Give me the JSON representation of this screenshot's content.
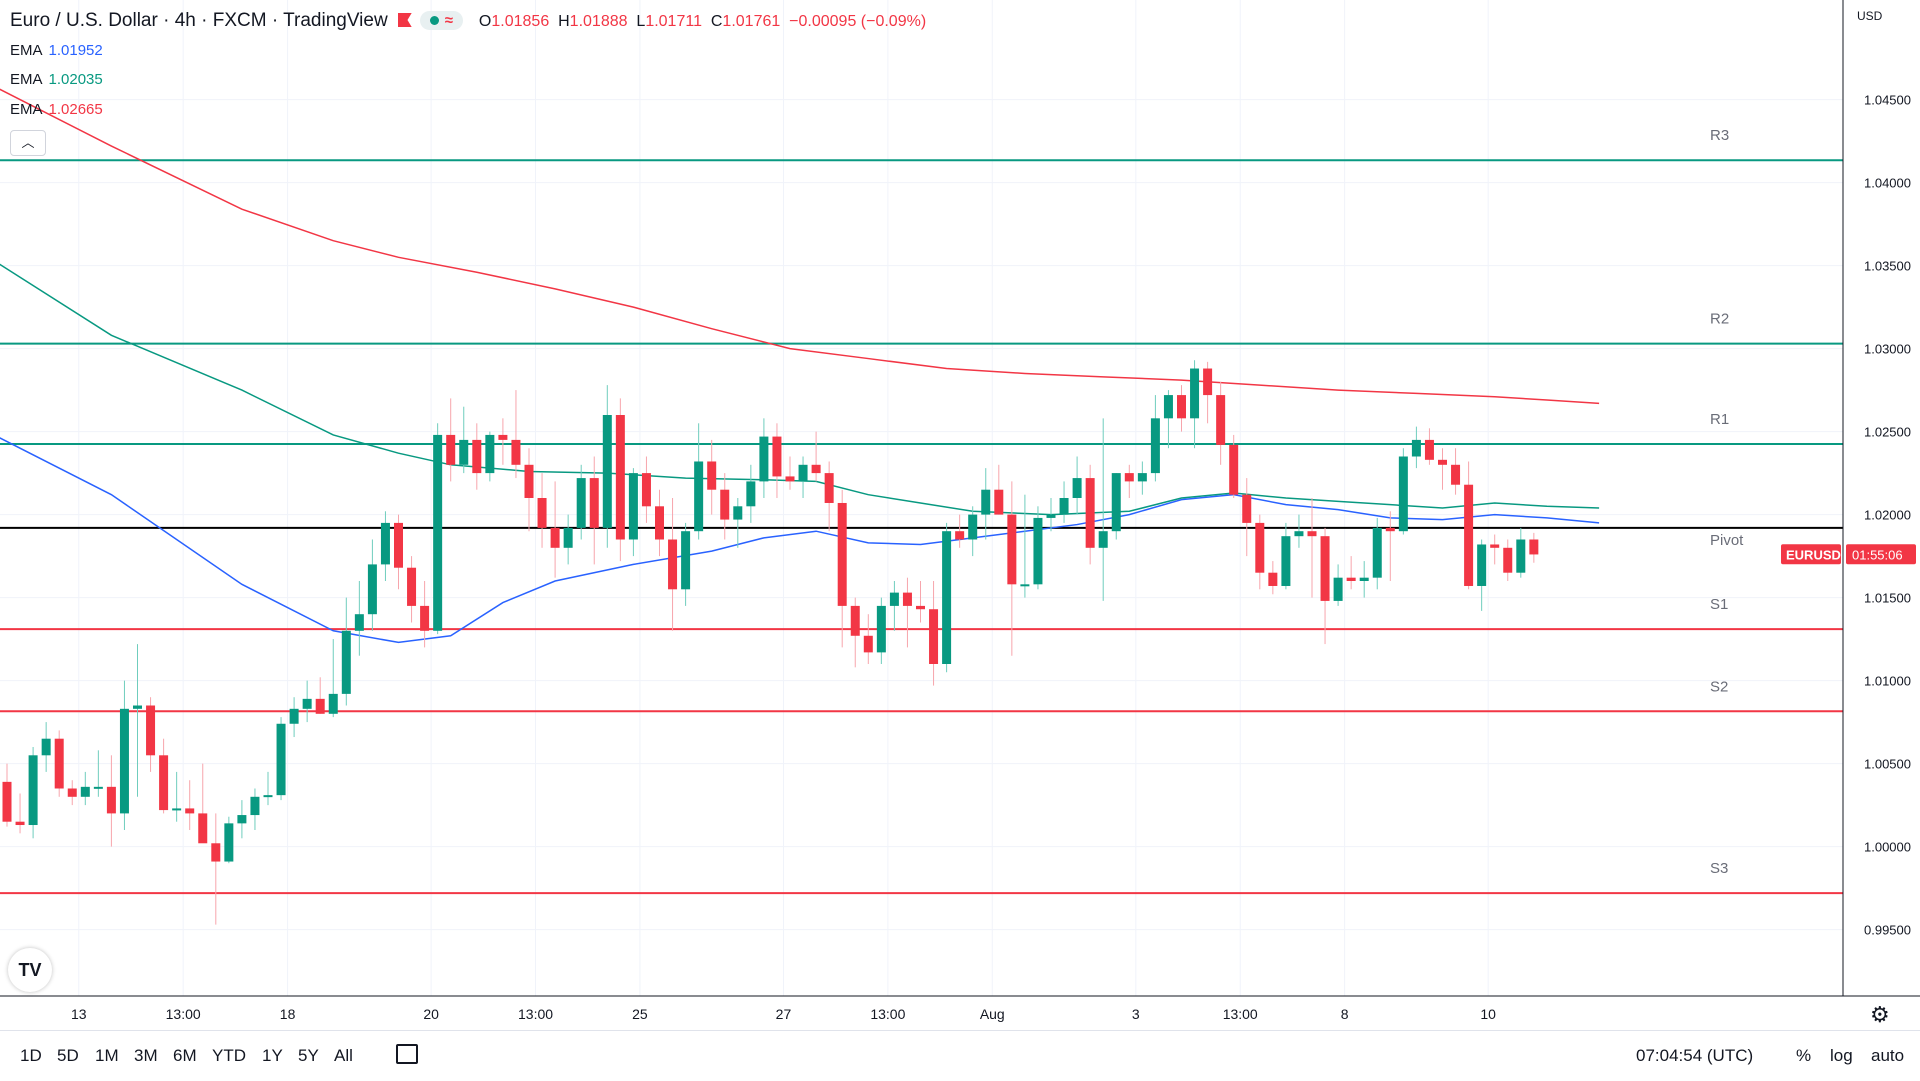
{
  "header": {
    "symbol": "Euro / U.S. Dollar",
    "interval": "4h",
    "exchange": "FXCM",
    "platform": "TradingView",
    "open_label": "O",
    "open": "1.01856",
    "high_label": "H",
    "high": "1.01888",
    "low_label": "L",
    "low": "1.01711",
    "close_label": "C",
    "close": "1.01761",
    "change": "−0.00095 (−0.09%)",
    "separator": "·"
  },
  "indicators": [
    {
      "name": "EMA",
      "value": "1.01952",
      "color": "#2962ff"
    },
    {
      "name": "EMA",
      "value": "1.02035",
      "color": "#089981"
    },
    {
      "name": "EMA",
      "value": "1.02665",
      "color": "#f23645"
    }
  ],
  "collapse_icon": "chevron-up",
  "logo_text": "TV",
  "currency": "USD",
  "chart_data": {
    "type": "candlestick",
    "symbol_badge": "EURUSD",
    "countdown": "01:55:06",
    "last_price": 1.01761,
    "ylim": [
      0.991,
      1.051
    ],
    "y_ticks": [
      "1.04500",
      "1.04000",
      "1.03500",
      "1.03000",
      "1.02500",
      "1.02000",
      "1.01500",
      "1.01000",
      "1.00500",
      "1.00000",
      "0.99500"
    ],
    "y_tick_values": [
      1.045,
      1.04,
      1.035,
      1.03,
      1.025,
      1.02,
      1.015,
      1.01,
      1.005,
      1.0,
      0.995
    ],
    "x_ticks": [
      {
        "label": "13",
        "index": 5.5
      },
      {
        "label": "13:00",
        "index": 13.5
      },
      {
        "label": "18",
        "index": 21.5
      },
      {
        "label": "20",
        "index": 32.5
      },
      {
        "label": "13:00",
        "index": 40.5
      },
      {
        "label": "25",
        "index": 48.5
      },
      {
        "label": "27",
        "index": 59.5
      },
      {
        "label": "13:00",
        "index": 67.5
      },
      {
        "label": "Aug",
        "index": 75.5
      },
      {
        "label": "3",
        "index": 86.5
      },
      {
        "label": "13:00",
        "index": 94.5
      },
      {
        "label": "8",
        "index": 102.5
      },
      {
        "label": "10",
        "index": 113.5
      }
    ],
    "levels": [
      {
        "name": "R3",
        "value": 1.04135,
        "color": "#089981"
      },
      {
        "name": "R2",
        "value": 1.0303,
        "color": "#089981"
      },
      {
        "name": "R1",
        "value": 1.02425,
        "color": "#089981"
      },
      {
        "name": "Pivot",
        "value": 1.0192,
        "color": "#000000"
      },
      {
        "name": "S1",
        "value": 1.0131,
        "color": "#f23645"
      },
      {
        "name": "S2",
        "value": 1.00815,
        "color": "#f23645"
      },
      {
        "name": "S3",
        "value": 0.9972,
        "color": "#f23645"
      }
    ],
    "candles": [
      [
        1.0039,
        1.005,
        1.0012,
        1.0015
      ],
      [
        1.0015,
        1.0032,
        1.0008,
        1.0013
      ],
      [
        1.0013,
        1.006,
        1.0005,
        1.0055
      ],
      [
        1.0055,
        1.0075,
        1.0045,
        1.0065
      ],
      [
        1.0065,
        1.007,
        1.003,
        1.0035
      ],
      [
        1.0035,
        1.004,
        1.0025,
        1.003
      ],
      [
        1.003,
        1.0045,
        1.0025,
        1.0036
      ],
      [
        1.0036,
        1.0058,
        1.003,
        1.0036
      ],
      [
        1.0036,
        1.0055,
        1.0,
        1.002
      ],
      [
        1.002,
        1.01,
        1.001,
        1.0083
      ],
      [
        1.0083,
        1.0122,
        1.003,
        1.0085
      ],
      [
        1.0085,
        1.009,
        1.0045,
        1.0055
      ],
      [
        1.0055,
        1.0065,
        1.002,
        1.0022
      ],
      [
        1.0022,
        1.0045,
        1.0015,
        1.0023
      ],
      [
        1.0023,
        1.004,
        1.001,
        1.002
      ],
      [
        1.002,
        1.005,
        1.0005,
        1.0002
      ],
      [
        1.0002,
        1.002,
        0.9953,
        0.9991
      ],
      [
        0.9991,
        1.0018,
        0.999,
        1.0014
      ],
      [
        1.0014,
        1.0028,
        1.0005,
        1.0019
      ],
      [
        1.0019,
        1.0035,
        1.001,
        1.003
      ],
      [
        1.003,
        1.0045,
        1.0025,
        1.0031
      ],
      [
        1.0031,
        1.0078,
        1.0028,
        1.0074
      ],
      [
        1.0074,
        1.009,
        1.0066,
        1.0083
      ],
      [
        1.0083,
        1.01,
        1.0075,
        1.0089
      ],
      [
        1.0089,
        1.0102,
        1.008,
        1.008
      ],
      [
        1.008,
        1.0125,
        1.0078,
        1.0092
      ],
      [
        1.0092,
        1.015,
        1.0085,
        1.013
      ],
      [
        1.013,
        1.016,
        1.0115,
        1.014
      ],
      [
        1.014,
        1.0185,
        1.013,
        1.017
      ],
      [
        1.017,
        1.0202,
        1.016,
        1.0195
      ],
      [
        1.0195,
        1.02,
        1.0155,
        1.0168
      ],
      [
        1.0168,
        1.0175,
        1.0135,
        1.0145
      ],
      [
        1.0145,
        1.016,
        1.012,
        1.013
      ],
      [
        1.013,
        1.0255,
        1.0128,
        1.0248
      ],
      [
        1.0248,
        1.027,
        1.022,
        1.023
      ],
      [
        1.023,
        1.0265,
        1.0225,
        1.0245
      ],
      [
        1.0245,
        1.0255,
        1.0215,
        1.0225
      ],
      [
        1.0225,
        1.025,
        1.022,
        1.0248
      ],
      [
        1.0248,
        1.0258,
        1.023,
        1.0245
      ],
      [
        1.0245,
        1.0275,
        1.0222,
        1.023
      ],
      [
        1.023,
        1.024,
        1.019,
        1.021
      ],
      [
        1.021,
        1.0225,
        1.018,
        1.0192
      ],
      [
        1.0192,
        1.022,
        1.0162,
        1.018
      ],
      [
        1.018,
        1.02,
        1.017,
        1.0192
      ],
      [
        1.0192,
        1.023,
        1.0185,
        1.0222
      ],
      [
        1.0222,
        1.0235,
        1.017,
        1.0192
      ],
      [
        1.0192,
        1.0278,
        1.018,
        1.026
      ],
      [
        1.026,
        1.027,
        1.0172,
        1.0185
      ],
      [
        1.0185,
        1.0228,
        1.0175,
        1.0225
      ],
      [
        1.0225,
        1.0235,
        1.0195,
        1.0205
      ],
      [
        1.0205,
        1.0215,
        1.0175,
        1.0185
      ],
      [
        1.0185,
        1.021,
        1.013,
        1.0155
      ],
      [
        1.0155,
        1.0195,
        1.0145,
        1.019
      ],
      [
        1.019,
        1.0255,
        1.0185,
        1.0232
      ],
      [
        1.0232,
        1.0245,
        1.02,
        1.0215
      ],
      [
        1.0215,
        1.0225,
        1.0185,
        1.0197
      ],
      [
        1.0197,
        1.021,
        1.018,
        1.0205
      ],
      [
        1.0205,
        1.023,
        1.0195,
        1.022
      ],
      [
        1.022,
        1.0258,
        1.021,
        1.0247
      ],
      [
        1.0247,
        1.0255,
        1.021,
        1.0223
      ],
      [
        1.0223,
        1.0235,
        1.0215,
        1.022
      ],
      [
        1.022,
        1.0235,
        1.021,
        1.023
      ],
      [
        1.023,
        1.025,
        1.022,
        1.0225
      ],
      [
        1.0225,
        1.0232,
        1.019,
        1.0207
      ],
      [
        1.0207,
        1.0215,
        1.012,
        1.0145
      ],
      [
        1.0145,
        1.015,
        1.0108,
        1.0127
      ],
      [
        1.0127,
        1.014,
        1.011,
        1.0117
      ],
      [
        1.0117,
        1.015,
        1.011,
        1.0145
      ],
      [
        1.0145,
        1.016,
        1.013,
        1.0153
      ],
      [
        1.0153,
        1.0162,
        1.012,
        1.0145
      ],
      [
        1.0145,
        1.016,
        1.0135,
        1.0143
      ],
      [
        1.0143,
        1.016,
        1.0097,
        1.011
      ],
      [
        1.011,
        1.0195,
        1.0105,
        1.019
      ],
      [
        1.019,
        1.02,
        1.018,
        1.0185
      ],
      [
        1.0185,
        1.0205,
        1.0175,
        1.02
      ],
      [
        1.02,
        1.0228,
        1.0185,
        1.0215
      ],
      [
        1.0215,
        1.023,
        1.02,
        1.02
      ],
      [
        1.02,
        1.022,
        1.0115,
        1.0158
      ],
      [
        1.0158,
        1.0212,
        1.015,
        1.0158
      ],
      [
        1.0158,
        1.0205,
        1.0155,
        1.0198
      ],
      [
        1.0198,
        1.021,
        1.019,
        1.02
      ],
      [
        1.02,
        1.022,
        1.0195,
        1.021
      ],
      [
        1.021,
        1.0235,
        1.02,
        1.0222
      ],
      [
        1.0222,
        1.023,
        1.017,
        1.018
      ],
      [
        1.018,
        1.0258,
        1.0148,
        1.019
      ],
      [
        1.019,
        1.0225,
        1.0185,
        1.0225
      ],
      [
        1.0225,
        1.023,
        1.021,
        1.022
      ],
      [
        1.022,
        1.0232,
        1.0212,
        1.0225
      ],
      [
        1.0225,
        1.0272,
        1.022,
        1.0258
      ],
      [
        1.0258,
        1.0275,
        1.024,
        1.0272
      ],
      [
        1.0272,
        1.0278,
        1.025,
        1.0258
      ],
      [
        1.0258,
        1.0293,
        1.024,
        1.0288
      ],
      [
        1.0288,
        1.0292,
        1.0255,
        1.0272
      ],
      [
        1.0272,
        1.028,
        1.023,
        1.0242
      ],
      [
        1.0242,
        1.0248,
        1.021,
        1.0212
      ],
      [
        1.0212,
        1.0222,
        1.0175,
        1.0195
      ],
      [
        1.0195,
        1.02,
        1.0155,
        1.0165
      ],
      [
        1.0165,
        1.0172,
        1.0152,
        1.0157
      ],
      [
        1.0157,
        1.0195,
        1.0155,
        1.0187
      ],
      [
        1.0187,
        1.02,
        1.018,
        1.019
      ],
      [
        1.019,
        1.021,
        1.015,
        1.0187
      ],
      [
        1.0187,
        1.0192,
        1.0122,
        1.0148
      ],
      [
        1.0148,
        1.017,
        1.0145,
        1.0162
      ],
      [
        1.0162,
        1.0175,
        1.0155,
        1.016
      ],
      [
        1.016,
        1.0172,
        1.015,
        1.0162
      ],
      [
        1.0162,
        1.0198,
        1.0155,
        1.0192
      ],
      [
        1.0192,
        1.0202,
        1.016,
        1.019
      ],
      [
        1.019,
        1.024,
        1.0188,
        1.0235
      ],
      [
        1.0235,
        1.0253,
        1.0228,
        1.0245
      ],
      [
        1.0245,
        1.0252,
        1.023,
        1.0233
      ],
      [
        1.0233,
        1.024,
        1.0215,
        1.023
      ],
      [
        1.023,
        1.024,
        1.0212,
        1.0218
      ],
      [
        1.0218,
        1.0232,
        1.0155,
        1.0157
      ],
      [
        1.0157,
        1.0185,
        1.0142,
        1.0182
      ],
      [
        1.0182,
        1.0188,
        1.017,
        1.018
      ],
      [
        1.018,
        1.0185,
        1.016,
        1.0165
      ],
      [
        1.0165,
        1.0192,
        1.0162,
        1.0185
      ],
      [
        1.0185,
        1.0189,
        1.0171,
        1.0176
      ]
    ],
    "ema_series": [
      {
        "name": "EMA fast",
        "color": "#2962ff",
        "points": [
          [
            -2,
            1.0252
          ],
          [
            8,
            1.0212
          ],
          [
            18,
            1.0158
          ],
          [
            25,
            1.013
          ],
          [
            30,
            1.0123
          ],
          [
            34,
            1.0127
          ],
          [
            38,
            1.0147
          ],
          [
            42,
            1.016
          ],
          [
            48,
            1.017
          ],
          [
            54,
            1.0178
          ],
          [
            58,
            1.0186
          ],
          [
            62,
            1.019
          ],
          [
            66,
            1.0183
          ],
          [
            70,
            1.0182
          ],
          [
            74,
            1.0186
          ],
          [
            78,
            1.019
          ],
          [
            82,
            1.0194
          ],
          [
            86,
            1.02
          ],
          [
            90,
            1.0209
          ],
          [
            94,
            1.0212
          ],
          [
            98,
            1.0206
          ],
          [
            102,
            1.0203
          ],
          [
            106,
            1.0198
          ],
          [
            110,
            1.0197
          ],
          [
            114,
            1.02
          ],
          [
            118,
            1.0198
          ],
          [
            122,
            1.0195
          ]
        ]
      },
      {
        "name": "EMA mid",
        "color": "#089981",
        "points": [
          [
            -2,
            1.0358
          ],
          [
            8,
            1.0308
          ],
          [
            18,
            1.0275
          ],
          [
            25,
            1.0248
          ],
          [
            30,
            1.0237
          ],
          [
            34,
            1.023
          ],
          [
            40,
            1.0226
          ],
          [
            46,
            1.0225
          ],
          [
            52,
            1.0222
          ],
          [
            58,
            1.0221
          ],
          [
            62,
            1.022
          ],
          [
            66,
            1.0212
          ],
          [
            70,
            1.0207
          ],
          [
            74,
            1.0202
          ],
          [
            80,
            1.02
          ],
          [
            86,
            1.0202
          ],
          [
            90,
            1.021
          ],
          [
            94,
            1.0213
          ],
          [
            98,
            1.021
          ],
          [
            102,
            1.0208
          ],
          [
            106,
            1.0206
          ],
          [
            110,
            1.0204
          ],
          [
            114,
            1.0207
          ],
          [
            118,
            1.0205
          ],
          [
            122,
            1.0204
          ]
        ]
      },
      {
        "name": "EMA slow",
        "color": "#f23645",
        "points": [
          [
            -2,
            1.0462
          ],
          [
            8,
            1.0422
          ],
          [
            18,
            1.0384
          ],
          [
            25,
            1.0365
          ],
          [
            30,
            1.0355
          ],
          [
            36,
            1.0346
          ],
          [
            42,
            1.0336
          ],
          [
            48,
            1.0325
          ],
          [
            54,
            1.0312
          ],
          [
            60,
            1.03
          ],
          [
            66,
            1.0294
          ],
          [
            72,
            1.0288
          ],
          [
            78,
            1.0285
          ],
          [
            84,
            1.0283
          ],
          [
            90,
            1.0281
          ],
          [
            96,
            1.0278
          ],
          [
            102,
            1.0275
          ],
          [
            108,
            1.0273
          ],
          [
            114,
            1.0271
          ],
          [
            118,
            1.0269
          ],
          [
            122,
            1.0267
          ]
        ]
      }
    ]
  },
  "timeframes": [
    "1D",
    "5D",
    "1M",
    "3M",
    "6M",
    "YTD",
    "1Y",
    "5Y",
    "All"
  ],
  "clock": "07:04:54 (UTC)",
  "options": [
    "%",
    "log",
    "auto"
  ],
  "icons": {
    "date_range": "calendar-range-icon",
    "settings": "gear-icon"
  }
}
